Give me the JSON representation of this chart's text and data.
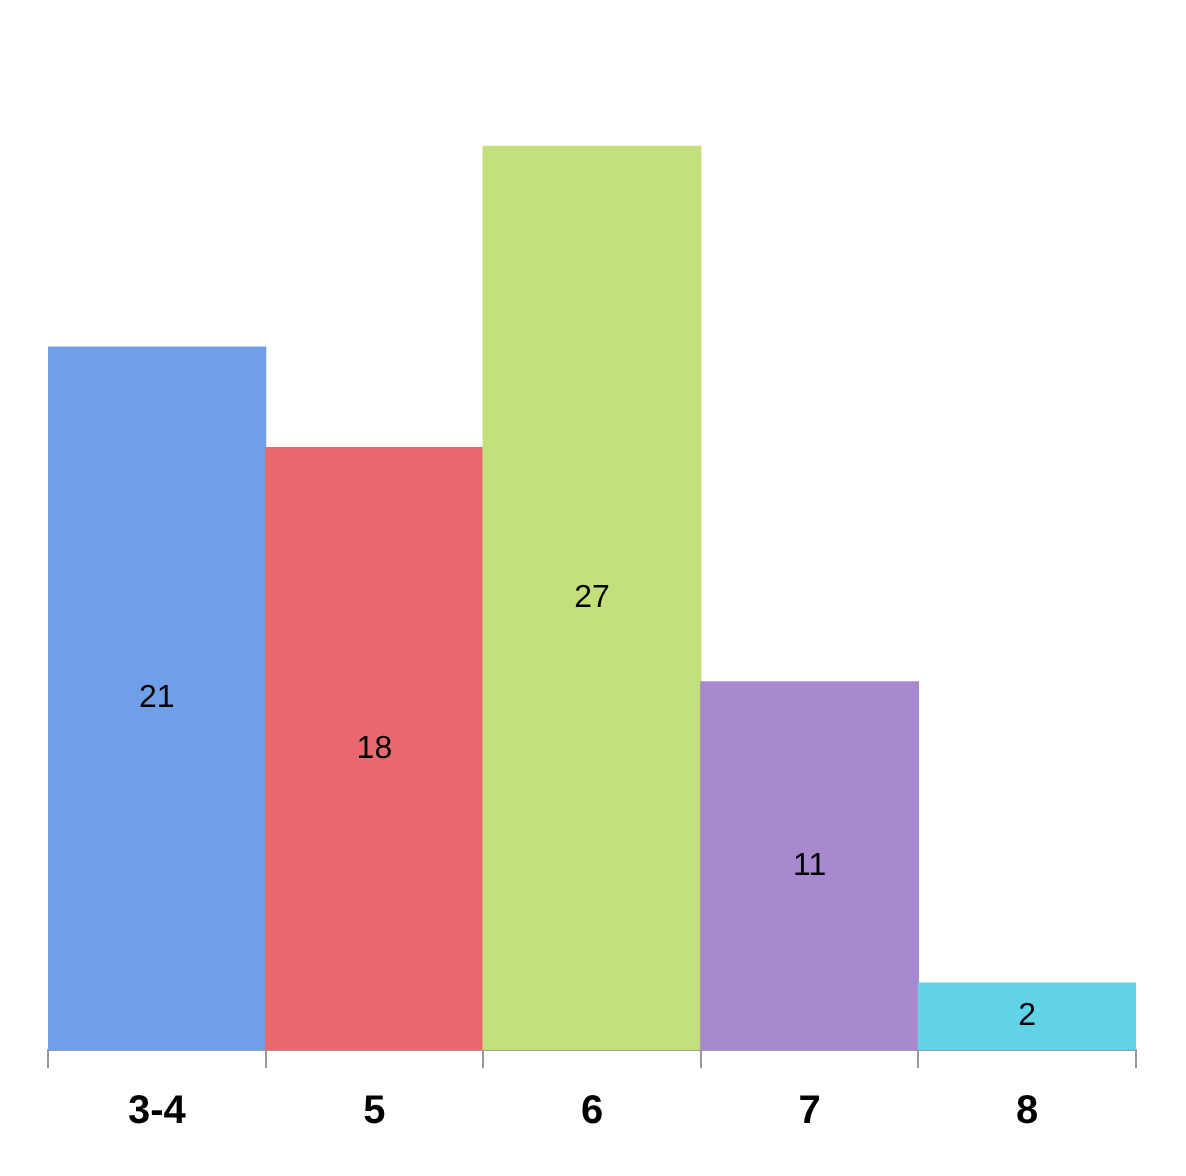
{
  "chart_data": {
    "type": "bar",
    "categories": [
      "3-4",
      "5",
      "6",
      "7",
      "8"
    ],
    "values": [
      21,
      18,
      27,
      11,
      2
    ],
    "colors": [
      "#6f9fe6",
      "#e9686d",
      "#c3e07c",
      "#a889cf",
      "#62d2e6"
    ],
    "data_labels": true,
    "legend": false,
    "grid": false
  }
}
